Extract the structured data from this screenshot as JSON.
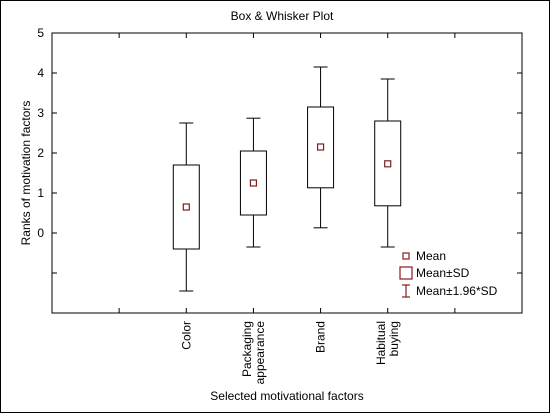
{
  "chart_data": {
    "type": "box",
    "title": "Box & Whisker Plot",
    "xlabel": "Selected motivational factors",
    "ylabel": "Ranks of motivation factors",
    "ylim": [
      -2,
      5
    ],
    "yticks": [
      0,
      1,
      2,
      3,
      4,
      5
    ],
    "grid": false,
    "categories": [
      "Color",
      "Packaging appearance",
      "Brand",
      "Habitual buying"
    ],
    "category_lines": [
      [
        "Color"
      ],
      [
        "Packaging",
        "appearance"
      ],
      [
        "Brand"
      ],
      [
        "Habitual",
        "buying"
      ]
    ],
    "series": [
      {
        "name": "Color",
        "mean": 0.65,
        "sd_low": -0.4,
        "sd_high": 1.7,
        "ci_low": -1.45,
        "ci_high": 2.75
      },
      {
        "name": "Packaging appearance",
        "mean": 1.25,
        "sd_low": 0.45,
        "sd_high": 2.05,
        "ci_low": -0.35,
        "ci_high": 2.87
      },
      {
        "name": "Brand",
        "mean": 2.15,
        "sd_low": 1.13,
        "sd_high": 3.15,
        "ci_low": 0.13,
        "ci_high": 4.15
      },
      {
        "name": "Habitual buying",
        "mean": 1.73,
        "sd_low": 0.68,
        "sd_high": 2.8,
        "ci_low": -0.35,
        "ci_high": 3.85
      }
    ],
    "legend": {
      "position": "bottom-right",
      "entries": [
        "Mean",
        "Mean±SD",
        "Mean±1.96*SD"
      ]
    },
    "colors": {
      "box": "#000000",
      "mean_marker": "#7a1f1f",
      "legend_marker": "#8b1a1a"
    }
  }
}
